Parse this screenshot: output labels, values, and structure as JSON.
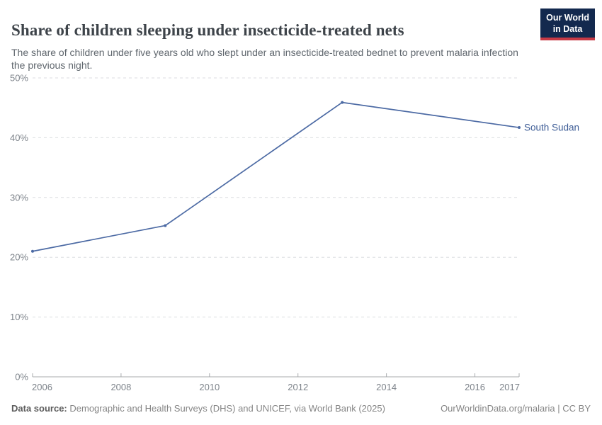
{
  "header": {
    "title": "Share of children sleeping under insecticide-treated nets",
    "subtitle": "The share of children under five years old who slept under an insecticide-treated bednet to prevent malaria infection the previous night."
  },
  "logo": {
    "line1": "Our World",
    "line2": "in Data",
    "bg_color": "#13294e",
    "stripe_color": "#c73a45"
  },
  "chart_data": {
    "type": "line",
    "title": "Share of children sleeping under insecticide-treated nets",
    "xlabel": "",
    "ylabel": "",
    "xlim": [
      2006,
      2017
    ],
    "ylim": [
      0,
      50
    ],
    "grid": "horizontal-dashed",
    "xticks": [
      2006,
      2008,
      2010,
      2012,
      2014,
      2016,
      2017
    ],
    "yticks": [
      0,
      10,
      20,
      30,
      40,
      50
    ],
    "ytick_suffix": "%",
    "series": [
      {
        "name": "South Sudan",
        "color": "#4c6aa4",
        "label_color": "#3d5c96",
        "x": [
          2006,
          2009,
          2013,
          2017
        ],
        "values": [
          21,
          25.3,
          45.9,
          41.7
        ]
      }
    ],
    "legend_position": "end-of-line"
  },
  "footer": {
    "source_label": "Data source:",
    "source_text": "Demographic and Health Surveys (DHS) and UNICEF, via World Bank (2025)",
    "link_text": "OurWorldinData.org/malaria | CC BY"
  }
}
